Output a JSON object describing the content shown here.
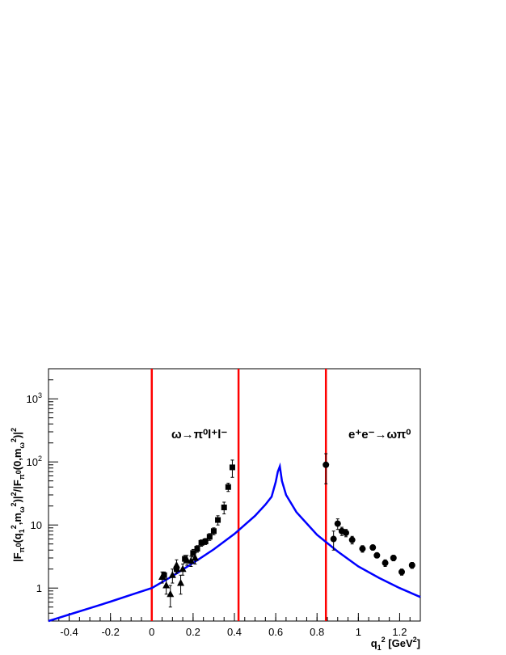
{
  "chart_data": {
    "type": "scatter",
    "xlabel": "q_1^2 [GeV^2]",
    "ylabel": "|F_π0(q_1^2,m_ω^2)|^2/|F_π0(0,m_ω^2)|^2",
    "xlim": [
      -0.5,
      1.3
    ],
    "ylim": [
      0.3,
      3000
    ],
    "y_scale": "log",
    "x_ticks": [
      "-0.4",
      "-0.2",
      "0",
      "0.2",
      "0.4",
      "0.6",
      "0.8",
      "1",
      "1.2"
    ],
    "y_ticks": [
      "1",
      "10",
      "10^2",
      "10^3"
    ],
    "vertical_lines": [
      0,
      0.42,
      0.843
    ],
    "annotations": [
      {
        "text": "ω→π⁰l⁺l⁻",
        "x": 0.14,
        "y": 90
      },
      {
        "text": "e⁺e⁻→ωπ⁰",
        "x": 1.03,
        "y": 90
      }
    ],
    "series": [
      {
        "marker": "triangle",
        "points": [
          {
            "x": 0.05,
            "y": 1.5,
            "err": 0.3
          },
          {
            "x": 0.07,
            "y": 1.1,
            "err": 0.3
          },
          {
            "x": 0.09,
            "y": 0.8,
            "err": 0.3
          },
          {
            "x": 0.1,
            "y": 1.6,
            "err": 0.4
          },
          {
            "x": 0.12,
            "y": 2.3,
            "err": 0.5
          },
          {
            "x": 0.14,
            "y": 1.2,
            "err": 0.4
          },
          {
            "x": 0.15,
            "y": 2.0,
            "err": 0.4
          },
          {
            "x": 0.17,
            "y": 2.8,
            "err": 0.5
          },
          {
            "x": 0.19,
            "y": 2.7,
            "err": 0.5
          },
          {
            "x": 0.21,
            "y": 3.0,
            "err": 0.6
          }
        ]
      },
      {
        "marker": "square",
        "points": [
          {
            "x": 0.06,
            "y": 1.6,
            "err": 0.2
          },
          {
            "x": 0.12,
            "y": 2.0,
            "err": 0.3
          },
          {
            "x": 0.16,
            "y": 2.9,
            "err": 0.4
          },
          {
            "x": 0.2,
            "y": 3.6,
            "err": 0.5
          },
          {
            "x": 0.22,
            "y": 4.2,
            "err": 0.5
          },
          {
            "x": 0.24,
            "y": 5.2,
            "err": 0.6
          },
          {
            "x": 0.26,
            "y": 5.5,
            "err": 0.6
          },
          {
            "x": 0.28,
            "y": 6.5,
            "err": 0.8
          },
          {
            "x": 0.3,
            "y": 8.0,
            "err": 1.0
          },
          {
            "x": 0.32,
            "y": 12,
            "err": 2.0
          },
          {
            "x": 0.35,
            "y": 19,
            "err": 4.0
          },
          {
            "x": 0.37,
            "y": 40,
            "err": 6.0
          },
          {
            "x": 0.39,
            "y": 82,
            "err": 25
          }
        ]
      },
      {
        "marker": "circle",
        "points": [
          {
            "x": 0.843,
            "y": 90,
            "err": 45
          },
          {
            "x": 0.88,
            "y": 6.0,
            "err": 2.0
          },
          {
            "x": 0.9,
            "y": 10.5,
            "err": 2.0
          },
          {
            "x": 0.92,
            "y": 8.0,
            "err": 1.2
          },
          {
            "x": 0.94,
            "y": 7.5,
            "err": 1.0
          },
          {
            "x": 0.97,
            "y": 5.8,
            "err": 0.8
          },
          {
            "x": 1.02,
            "y": 4.2,
            "err": 0.5
          },
          {
            "x": 1.07,
            "y": 4.4,
            "err": 0.4
          },
          {
            "x": 1.09,
            "y": 3.3,
            "err": 0.3
          },
          {
            "x": 1.13,
            "y": 2.5,
            "err": 0.3
          },
          {
            "x": 1.17,
            "y": 3.0,
            "err": 0.3
          },
          {
            "x": 1.21,
            "y": 1.8,
            "err": 0.2
          },
          {
            "x": 1.26,
            "y": 2.3,
            "err": 0.25
          }
        ]
      }
    ],
    "curve": {
      "color": "#0000ff",
      "x": [
        -0.5,
        -0.4,
        -0.3,
        -0.2,
        -0.1,
        0.0,
        0.1,
        0.2,
        0.3,
        0.4,
        0.5,
        0.55,
        0.58,
        0.6,
        0.61,
        0.62,
        0.63,
        0.65,
        0.7,
        0.8,
        0.9,
        1.0,
        1.1,
        1.2,
        1.3
      ],
      "y": [
        0.3,
        0.38,
        0.48,
        0.61,
        0.78,
        1.0,
        1.55,
        2.5,
        4.1,
        7.2,
        14,
        21,
        28,
        48,
        70,
        85,
        50,
        30,
        16,
        7.0,
        3.8,
        2.2,
        1.45,
        1.0,
        0.72
      ]
    }
  }
}
